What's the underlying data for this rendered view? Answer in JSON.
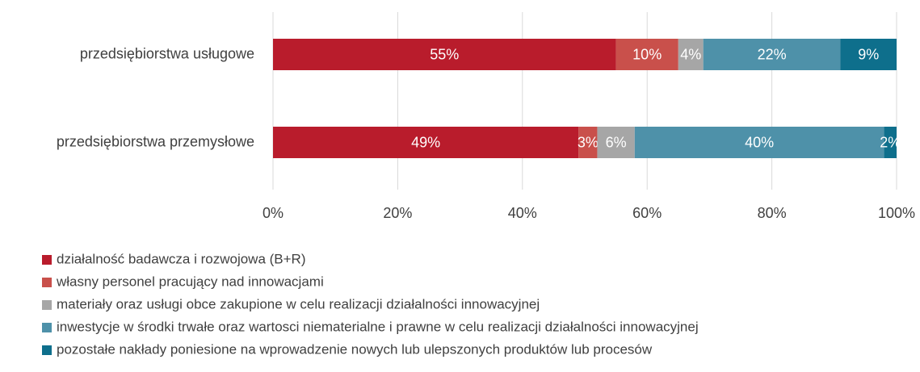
{
  "chart_data": {
    "type": "stacked_bar_horizontal",
    "categories": [
      "przedsiębiorstwa usługowe",
      "przedsiębiorstwa przemysłowe"
    ],
    "series": [
      {
        "name": "działalność badawcza i rozwojowa (B+R)",
        "color": "#b91c2c",
        "values": [
          55,
          49
        ],
        "value_labels": [
          "55%",
          "49%"
        ]
      },
      {
        "name": "własny personel pracujący nad innowacjami",
        "color": "#c9504b",
        "values": [
          10,
          3
        ],
        "value_labels": [
          "10%",
          "3%"
        ]
      },
      {
        "name": "materiały oraz usługi obce zakupione w celu realizacji działalności innowacyjnej",
        "color": "#a6a6a6",
        "values": [
          4,
          6
        ],
        "value_labels": [
          "4%",
          "6%"
        ]
      },
      {
        "name": "inwestycje w środki trwałe oraz wartosci niematerialne i prawne w celu realizacji działalności innowacyjnej",
        "color": "#4e91a9",
        "values": [
          22,
          40
        ],
        "value_labels": [
          "22%",
          "40%"
        ]
      },
      {
        "name": "pozostałe nakłady poniesione na wprowadzenie nowych lub ulepszonych produktów lub procesów",
        "color": "#0e6f8c",
        "values": [
          9,
          2
        ],
        "value_labels": [
          "9%",
          "2%"
        ]
      }
    ],
    "xlim": [
      0,
      100
    ],
    "xticks": [
      {
        "value": 0,
        "label": "0%"
      },
      {
        "value": 20,
        "label": "20%"
      },
      {
        "value": 40,
        "label": "40%"
      },
      {
        "value": 60,
        "label": "60%"
      },
      {
        "value": 80,
        "label": "80%"
      },
      {
        "value": 100,
        "label": "100%"
      }
    ],
    "grid": true,
    "legend": "bottom"
  }
}
